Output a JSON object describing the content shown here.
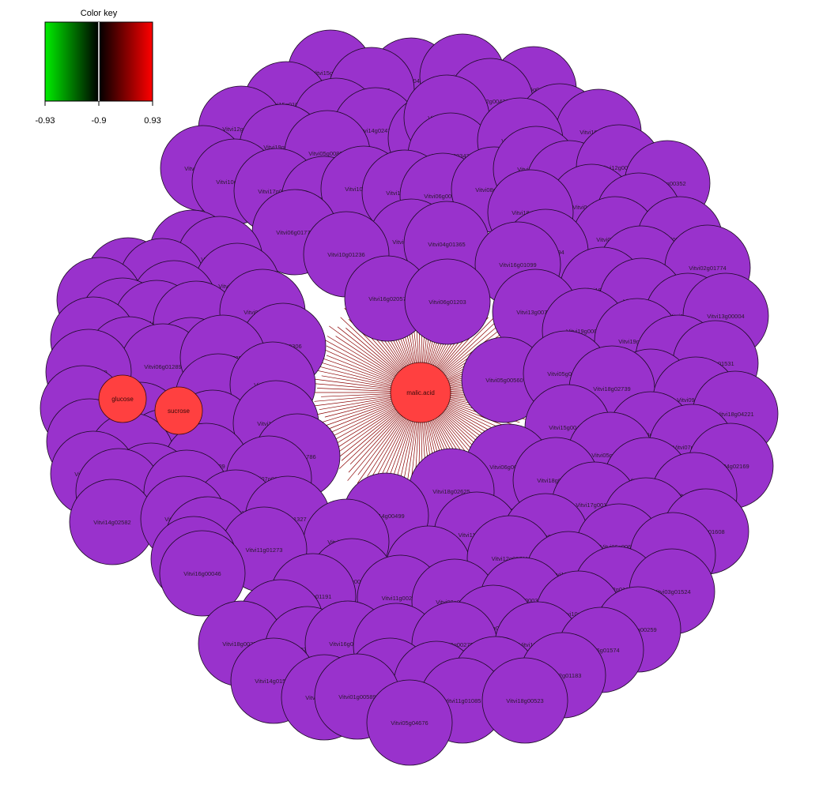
{
  "color_key": {
    "title": "Color key",
    "ticks": [
      "-0.93",
      "-0.9",
      "0.93"
    ],
    "colors": {
      "low": "#00ee00",
      "mid": "#000000",
      "high": "#ff0000"
    }
  },
  "colors": {
    "gene_node": "#9932cc",
    "metabolite_node": "#ff4040",
    "edge": "#8b0000"
  },
  "metabolites": [
    "malic.acid",
    "glucose",
    "sucrose"
  ],
  "genes": [
    "Vitvi15g01181",
    "Vitvi11g04039",
    "Vitvi14g00950",
    "Vitvi15g01019",
    "Vitvi08g01346",
    "Vitvi15g01166",
    "Vitvi12g00092",
    "Vitvi02g00032",
    "Vitvi12g00430",
    "Vitvi04g01035",
    "Vitvi10g02212",
    "Vitvi14g02474",
    "Vitvi12g02260",
    "Vitvi12g00187",
    "Vitvi19g00242",
    "Vitvi05g00839",
    "Vitvi01g00343",
    "Vitvi14g00086",
    "Vitvi02g01726",
    "Vitvi10g01551",
    "Vitvi17g00753",
    "Vitvi10g02295",
    "Vitvi10g01839",
    "Vitvi13g01298",
    "Vitvi06g00084",
    "Vitvi08g01905",
    "Vitvi18g00193",
    "Vitvi17g00135",
    "Vitvi12g00165",
    "Vitvi13g00352",
    "Vitvi04g01565",
    "Vitvi18g02476",
    "Vitvi10g00398",
    "Vitvi05g00403",
    "Vitvi09g00361",
    "Vitvi06g01777",
    "Vitvi01g00738",
    "Vitvi04g01365",
    "Vitvi04g00494",
    "Vitvi10g01236",
    "Vitvi16g01099",
    "Vitvi02g04153",
    "Vitvi02g01774",
    "Vitvi09g04497",
    "Vitvi04g01468",
    "Vitvi06g00371",
    "Vitvi18g01363",
    "Vitvi16g02057",
    "Vitvi06g01203",
    "Vitvi18g00726",
    "Vitvi10g00740",
    "Vitvi18g01571",
    "Vitvi06g04171",
    "Vitvi08g01627",
    "Vitvi13g00712",
    "Vitvi18g01916",
    "Vitvi13g00004",
    "Vitvi05g01603",
    "Vitvi10g04301",
    "Vitvi08g00716",
    "Vitvi05g00752",
    "Vitvi19g00026",
    "Vitvi19g02692",
    "Vitvi17g00261",
    "Vitvi19g00306",
    "Vitvi06g00834",
    "Vitvi19g00201",
    "Vitvi06g01289",
    "Vitvi07g00788",
    "Vitvi09g00763",
    "Vitvi06g01531",
    "Vitvi05g00209",
    "Vitvi05g00560",
    "Vitvi05g02824",
    "Vitvi04g00302",
    "Vitvi18g01130",
    "Vitvi06g00312",
    "Vitvi18g02739",
    "Vitvi09g00474",
    "Vitvi18g04221",
    "Vitvi02g00680",
    "Vitvi02g00096",
    "Vitvi16g00713",
    "Vitvi19g01892",
    "Vitvi04g01700",
    "Vitvi05g00565",
    "Vitvi15g00456",
    "Vitvi13g00507",
    "Vitvi07g01273",
    "Vitvi08g00970",
    "Vitvi13g01786",
    "Vitvi07g01809",
    "Vitvi05g01922",
    "Vitvi04g02169",
    "Vitvi01g00214",
    "Vitvi04g02268",
    "Vitvi07g01608",
    "Vitvi06g00305",
    "Vitvi18g01507",
    "Vitvi11g01693",
    "Vitvi11g01345",
    "Vitvi16g00789",
    "Vitvi18g02625",
    "Vitvi17g00154",
    "Vitvi10g00829",
    "Vitvi14g01696",
    "Vitvi02g01327",
    "Vitvi14g00499",
    "Vitvi04g01740",
    "Vitvi14g02582",
    "Vitvi03g00045",
    "Vitvi18g01682",
    "Vitvi11g00267",
    "Vitvi04g01608",
    "Vitvi06g01930",
    "Vitvi11g01273",
    "Vitvi13g01633",
    "Vitvi06g00691",
    "Vitvi17g00320",
    "Vitvi03g01544",
    "Vitvi04g00140",
    "Vitvi12g00711",
    "Vitvi18g01321",
    "Vitvi16g00046",
    "Vitvi12g01657",
    "Vitvi03g01524",
    "Vitvi02g00573",
    "Vitvi11g00208",
    "Vitvi08g01812",
    "Vitvi07g00033",
    "Vitvi15g01191",
    "Vitvi10g00663",
    "Vitvi12g00626",
    "Vitvi03g00851",
    "Vitvi09g00259",
    "Vitvi18g00270",
    "Vitvi02g00341",
    "Vitvi16g01070",
    "Vitvi14g01424",
    "Vitvi09g00279",
    "Vitvi10g00882",
    "Vitvi06g01574",
    "Vitvi14g01589",
    "Vitvi19g01739",
    "Vitvi14g00259",
    "Vitvi08g01162",
    "Vitvi02g01183",
    "Vitvi04g00146",
    "Vitvi01g00589",
    "Vitvi11g01085",
    "Vitvi18g00523",
    "Vitvi05g04676"
  ]
}
